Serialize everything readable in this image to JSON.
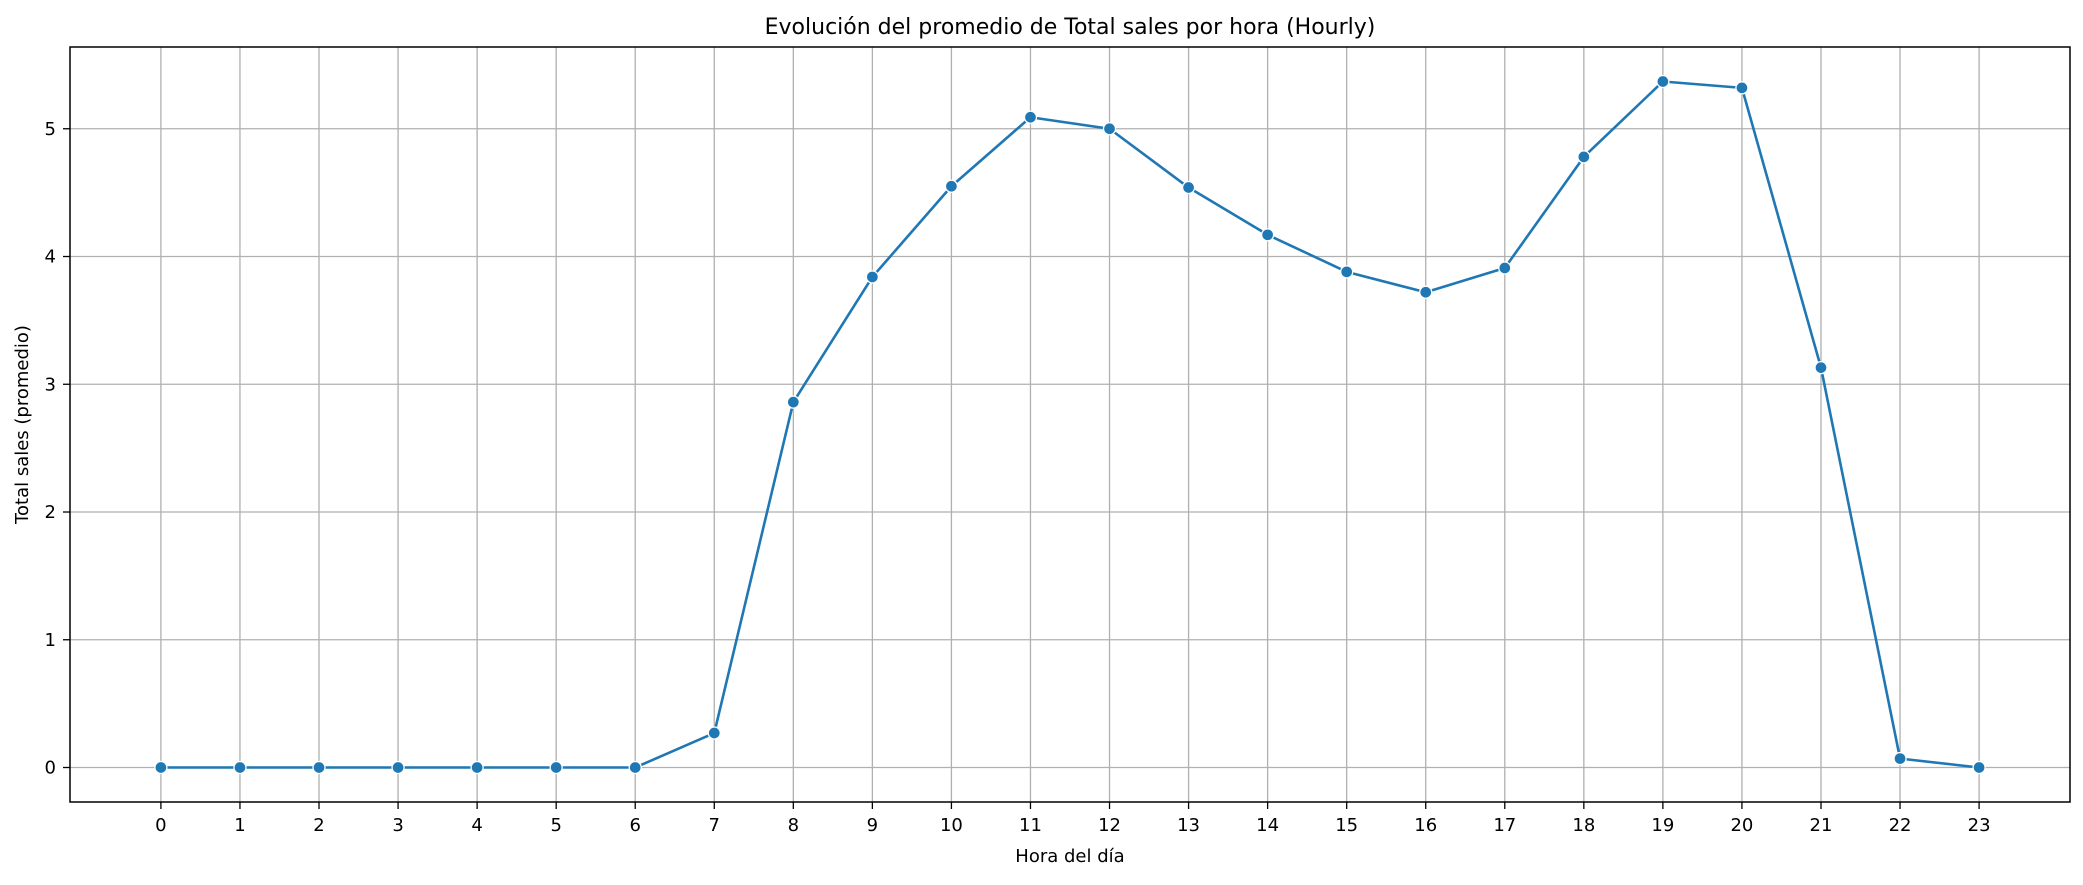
{
  "chart_data": {
    "type": "line",
    "title": "Evolución del promedio de Total sales por hora (Hourly)",
    "xlabel": "Hora del día",
    "ylabel": "Total sales (promedio)",
    "x": [
      0,
      1,
      2,
      3,
      4,
      5,
      6,
      7,
      8,
      9,
      10,
      11,
      12,
      13,
      14,
      15,
      16,
      17,
      18,
      19,
      20,
      21,
      22,
      23
    ],
    "series": [
      {
        "values": [
          0,
          0,
          0,
          0,
          0,
          0,
          0,
          0.27,
          2.86,
          3.84,
          4.55,
          5.09,
          5.0,
          4.54,
          4.17,
          3.88,
          3.72,
          3.91,
          4.78,
          5.37,
          5.32,
          3.13,
          0.07,
          0
        ]
      }
    ],
    "xticks": [
      0,
      1,
      2,
      3,
      4,
      5,
      6,
      7,
      8,
      9,
      10,
      11,
      12,
      13,
      14,
      15,
      16,
      17,
      18,
      19,
      20,
      21,
      22,
      23
    ],
    "yticks": [
      0,
      1,
      2,
      3,
      4,
      5
    ],
    "xlim": [
      -1.15,
      24.15
    ],
    "ylim": [
      -0.27,
      5.64
    ],
    "grid": true,
    "line_color": "#1f77b4",
    "grid_color": "#b0b0b0"
  }
}
